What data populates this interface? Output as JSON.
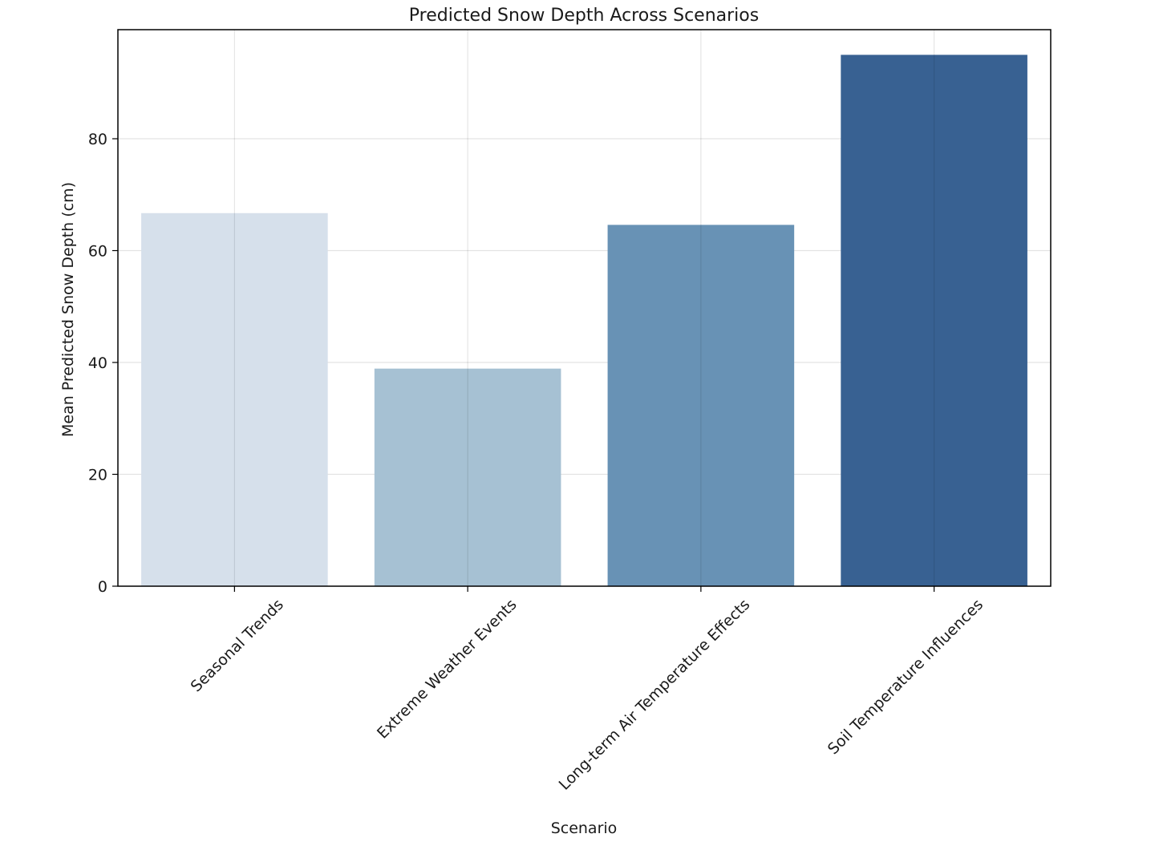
{
  "chart_data": {
    "type": "bar",
    "title": "Predicted Snow Depth Across Scenarios",
    "xlabel": "Scenario",
    "ylabel": "Mean Predicted Snow Depth (cm)",
    "categories": [
      "Seasonal Trends",
      "Extreme Weather Events",
      "Long-term Air Temperature Effects",
      "Soil Temperature Influences"
    ],
    "values": [
      66.7,
      38.9,
      64.6,
      95.0
    ],
    "colors": [
      "#d6e0eb",
      "#a6c1d3",
      "#6892b5",
      "#386192"
    ],
    "ylim": [
      0,
      99.5
    ],
    "yticks": [
      0,
      20,
      40,
      60,
      80
    ],
    "grid": true,
    "legend": "none"
  }
}
